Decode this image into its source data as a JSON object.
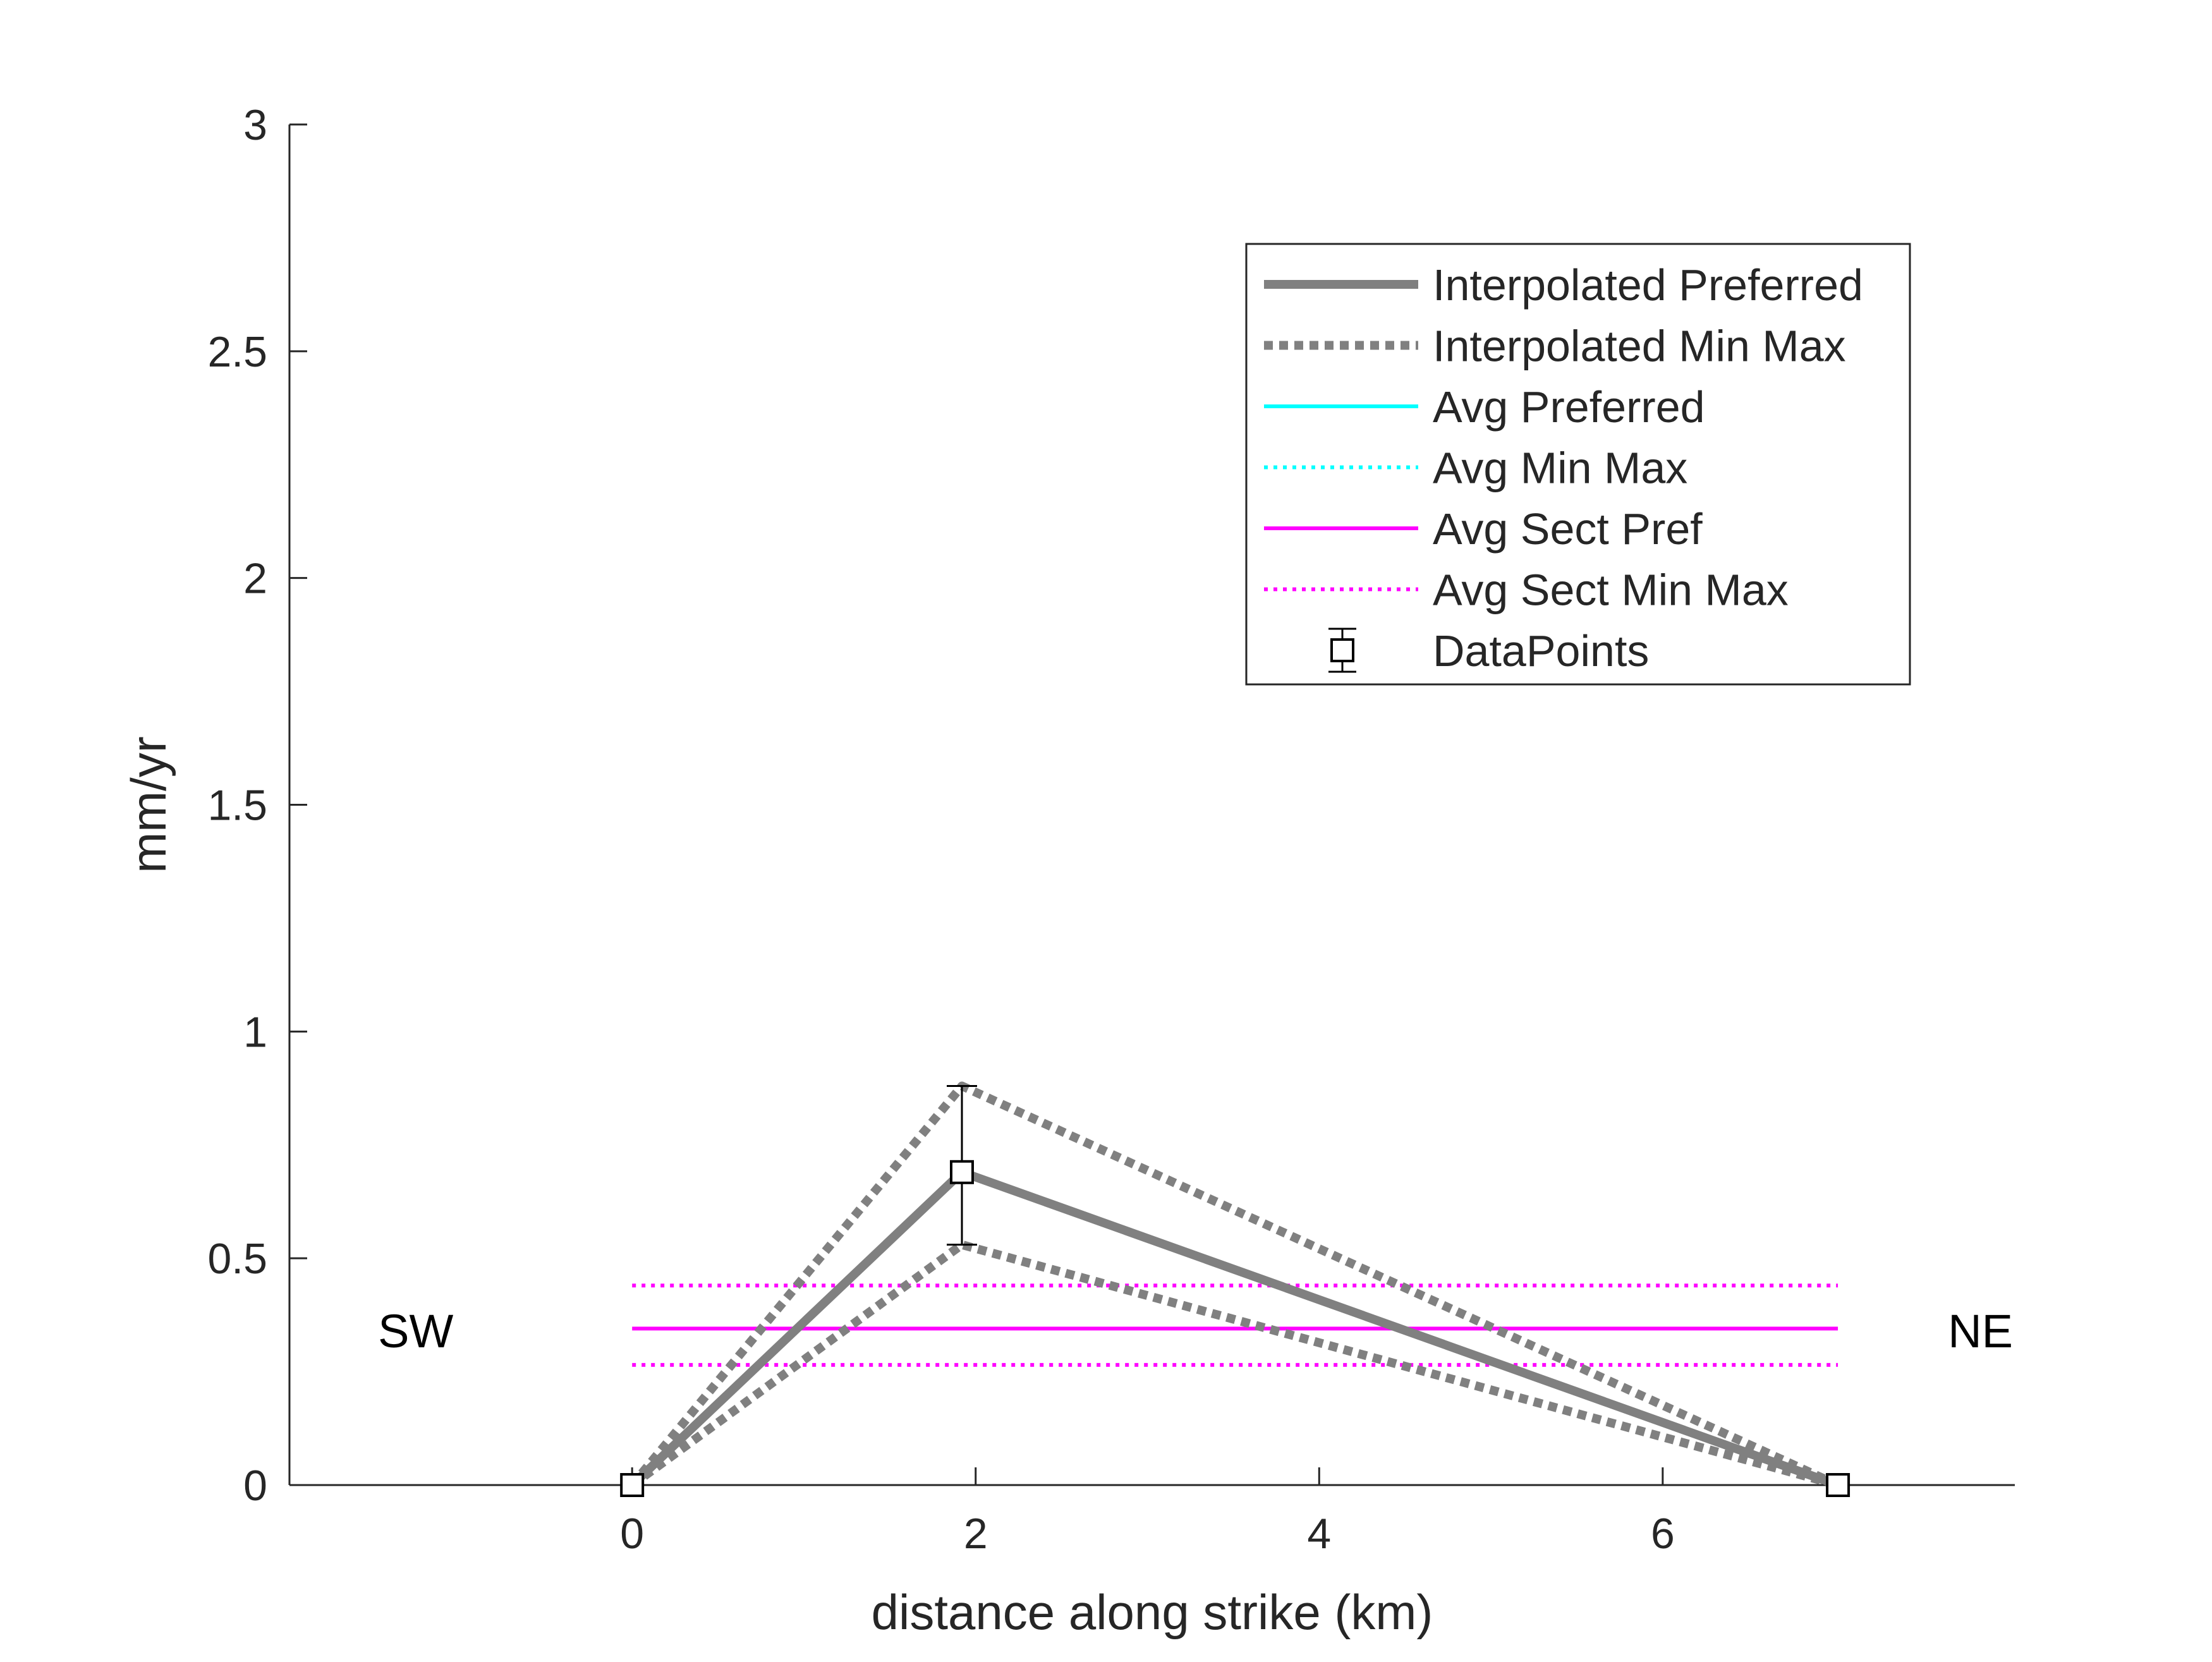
{
  "chart_data": {
    "type": "line",
    "title": "",
    "xlabel": "distance along strike (km)",
    "ylabel": "mm/yr",
    "xlim": [
      -1.995,
      8.05
    ],
    "ylim": [
      0,
      3
    ],
    "xticks": [
      0,
      2,
      4,
      6
    ],
    "xtick_labels": [
      "0",
      "2",
      "4",
      "6"
    ],
    "yticks": [
      0,
      0.5,
      1,
      1.5,
      2,
      2.5,
      3
    ],
    "ytick_labels": [
      "0",
      "0.5",
      "1",
      "1.5",
      "2",
      "2.5",
      "3"
    ],
    "grid": false,
    "legend_position": "top-right",
    "series": [
      {
        "name": "Interpolated Preferred",
        "style": "solid-thick",
        "color": "#808080",
        "x": [
          0,
          1.92,
          7.02
        ],
        "y": [
          0,
          0.69,
          0
        ]
      },
      {
        "name": "Interpolated Min Max",
        "style": "dotted-thick",
        "color": "#808080",
        "lines": [
          {
            "x": [
              0,
              1.92,
              7.02
            ],
            "y": [
              0,
              0.88,
              0
            ]
          },
          {
            "x": [
              0,
              1.92,
              7.02
            ],
            "y": [
              0,
              0.53,
              0
            ]
          }
        ]
      },
      {
        "name": "Avg Preferred",
        "style": "solid",
        "color": "#00ffff",
        "x": [],
        "y": []
      },
      {
        "name": "Avg Min Max",
        "style": "dotted",
        "color": "#00ffff",
        "x": [],
        "y": []
      },
      {
        "name": "Avg Sect Pref",
        "style": "solid",
        "color": "#ff00ff",
        "x": [
          0,
          7.02
        ],
        "y": [
          0.345,
          0.345
        ]
      },
      {
        "name": "Avg Sect Min Max",
        "style": "dotted",
        "color": "#ff00ff",
        "lines": [
          {
            "x": [
              0,
              7.02
            ],
            "y": [
              0.44,
              0.44
            ]
          },
          {
            "x": [
              0,
              7.02
            ],
            "y": [
              0.265,
              0.265
            ]
          }
        ]
      },
      {
        "name": "DataPoints",
        "style": "square-markers-errorbars",
        "color": "#000000",
        "points": [
          {
            "x": 0,
            "y": 0,
            "lo": 0,
            "hi": 0
          },
          {
            "x": 1.92,
            "y": 0.69,
            "lo": 0.53,
            "hi": 0.88
          },
          {
            "x": 7.02,
            "y": 0,
            "lo": 0,
            "hi": 0
          }
        ]
      }
    ],
    "annotations": [
      {
        "text": "SW",
        "x": -1.26,
        "y": 0.34
      },
      {
        "text": "NE",
        "x": 7.85,
        "y": 0.34
      }
    ]
  }
}
